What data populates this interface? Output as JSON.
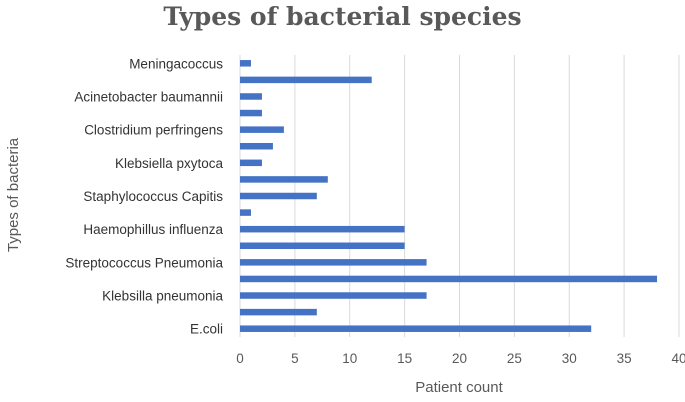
{
  "chart_data": {
    "type": "bar",
    "orientation": "horizontal",
    "title": "Types of bacterial species",
    "xlabel": "Patient count",
    "ylabel": "Types of bacteria",
    "xlim": [
      0,
      40
    ],
    "xticks": [
      0,
      5,
      10,
      15,
      20,
      25,
      30,
      35,
      40
    ],
    "grid": "vertical",
    "bar_color": "#4472C4",
    "categories": [
      "E.coli",
      "",
      "Klebsilla pneumonia",
      "",
      "Streptococcus Pneumonia",
      "",
      "Haemophillus influenza",
      "",
      "Staphylococcus Capitis",
      "",
      "Klebsiella pxytoca",
      "",
      "Clostridium perfringens",
      "",
      "Acinetobacter baumannii",
      "",
      "Meningacoccus"
    ],
    "values": [
      32,
      7,
      17,
      38,
      17,
      15,
      15,
      1,
      7,
      8,
      2,
      3,
      4,
      2,
      2,
      12,
      1
    ]
  }
}
